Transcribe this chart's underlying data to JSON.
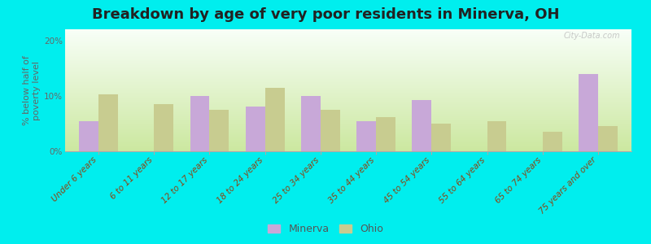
{
  "title": "Breakdown by age of very poor residents in Minerva, OH",
  "categories": [
    "Under 6 years",
    "6 to 11 years",
    "12 to 17 years",
    "18 to 24 years",
    "25 to 34 years",
    "35 to 44 years",
    "45 to 54 years",
    "55 to 64 years",
    "65 to 74 years",
    "75 years and over"
  ],
  "minerva_values": [
    5.5,
    0,
    10.0,
    8.0,
    10.0,
    5.5,
    9.2,
    0,
    0,
    14.0
  ],
  "ohio_values": [
    10.2,
    8.5,
    7.5,
    11.5,
    7.5,
    6.2,
    5.0,
    5.5,
    3.5,
    4.5
  ],
  "ylim": [
    0,
    22
  ],
  "yticks": [
    0,
    10,
    20
  ],
  "ytick_labels": [
    "0%",
    "10%",
    "20%"
  ],
  "ylabel": "% below half of\npoverty level",
  "minerva_color": "#c8a8d8",
  "ohio_color": "#c8cc90",
  "bg_top_color": "#f8fff8",
  "bg_bottom_color": "#cce8a0",
  "figure_bg": "#00eeee",
  "bar_width": 0.35,
  "legend_labels": [
    "Minerva",
    "Ohio"
  ],
  "watermark": "City-Data.com",
  "title_fontsize": 13,
  "ylabel_fontsize": 8,
  "tick_fontsize": 7.5,
  "legend_fontsize": 9
}
